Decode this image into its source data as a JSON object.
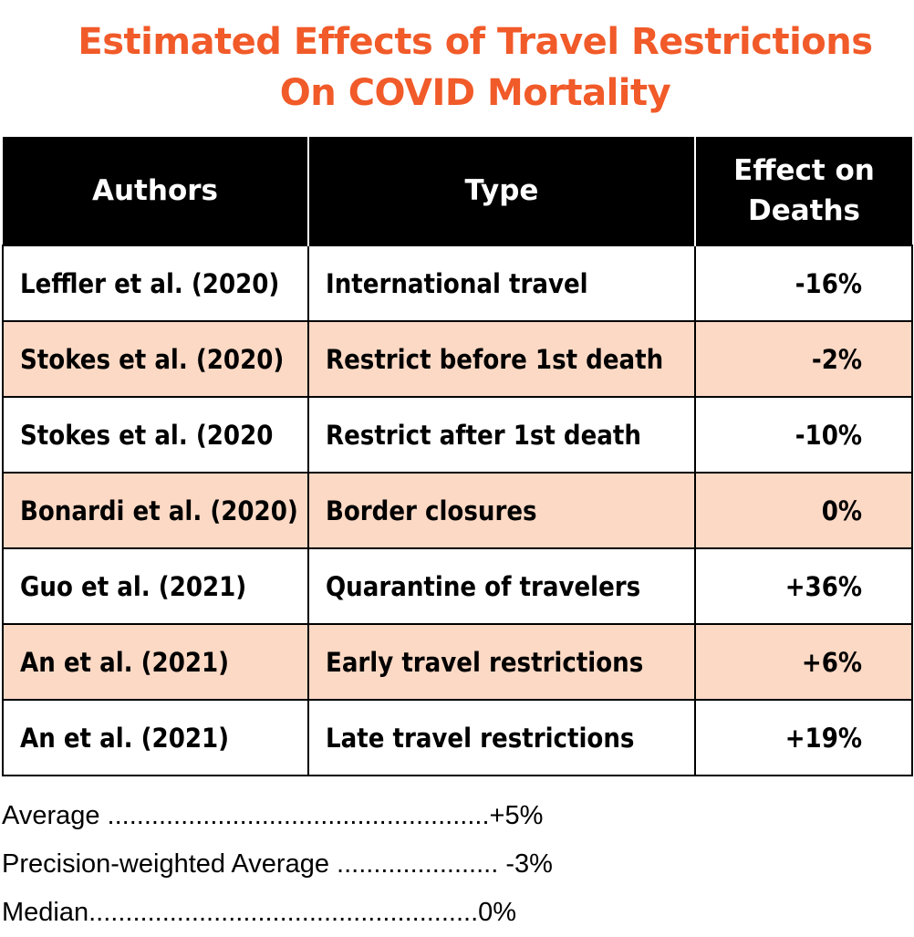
{
  "title": {
    "line1": "Estimated Effects of Travel Restrictions",
    "line2": "On COVID Mortality"
  },
  "chart_data": {
    "type": "table",
    "columns": [
      "Authors",
      "Type",
      "Effect on Deaths"
    ],
    "header_effect_line1": "Effect on",
    "header_effect_line2": "Deaths",
    "rows": [
      {
        "authors": "Leffler et al. (2020)",
        "type": "International travel",
        "effect": "-16%",
        "shaded": false
      },
      {
        "authors": "Stokes et al. (2020)",
        "type": "Restrict before 1st death",
        "effect": "-2%",
        "shaded": true
      },
      {
        "authors": "Stokes et al. (2020",
        "type": "Restrict after 1st death",
        "effect": "-10%",
        "shaded": false
      },
      {
        "authors": "Bonardi et al. (2020)",
        "type": "Border closures",
        "effect": "0%",
        "shaded": true
      },
      {
        "authors": "Guo et al. (2021)",
        "type": "Quarantine of travelers",
        "effect": "+36%",
        "shaded": false
      },
      {
        "authors": "An et al. (2021)",
        "type": "Early travel restrictions",
        "effect": "+6%",
        "shaded": true
      },
      {
        "authors": "An et al. (2021)",
        "type": "Late travel restrictions",
        "effect": "+19%",
        "shaded": false
      }
    ],
    "summary": [
      {
        "label": "Average ",
        "dots": "....................................................",
        "value": "+5%"
      },
      {
        "label": "Precision-weighted Average ",
        "dots": "...................... ",
        "value": "-3%"
      },
      {
        "label": "Median",
        "dots": ".....................................................",
        "value": "0%"
      }
    ]
  },
  "colors": {
    "title": "#f15a29",
    "header_bg": "#000000",
    "header_text": "#ffffff",
    "row_shade": "#fcd9c5",
    "border": "#000000"
  }
}
